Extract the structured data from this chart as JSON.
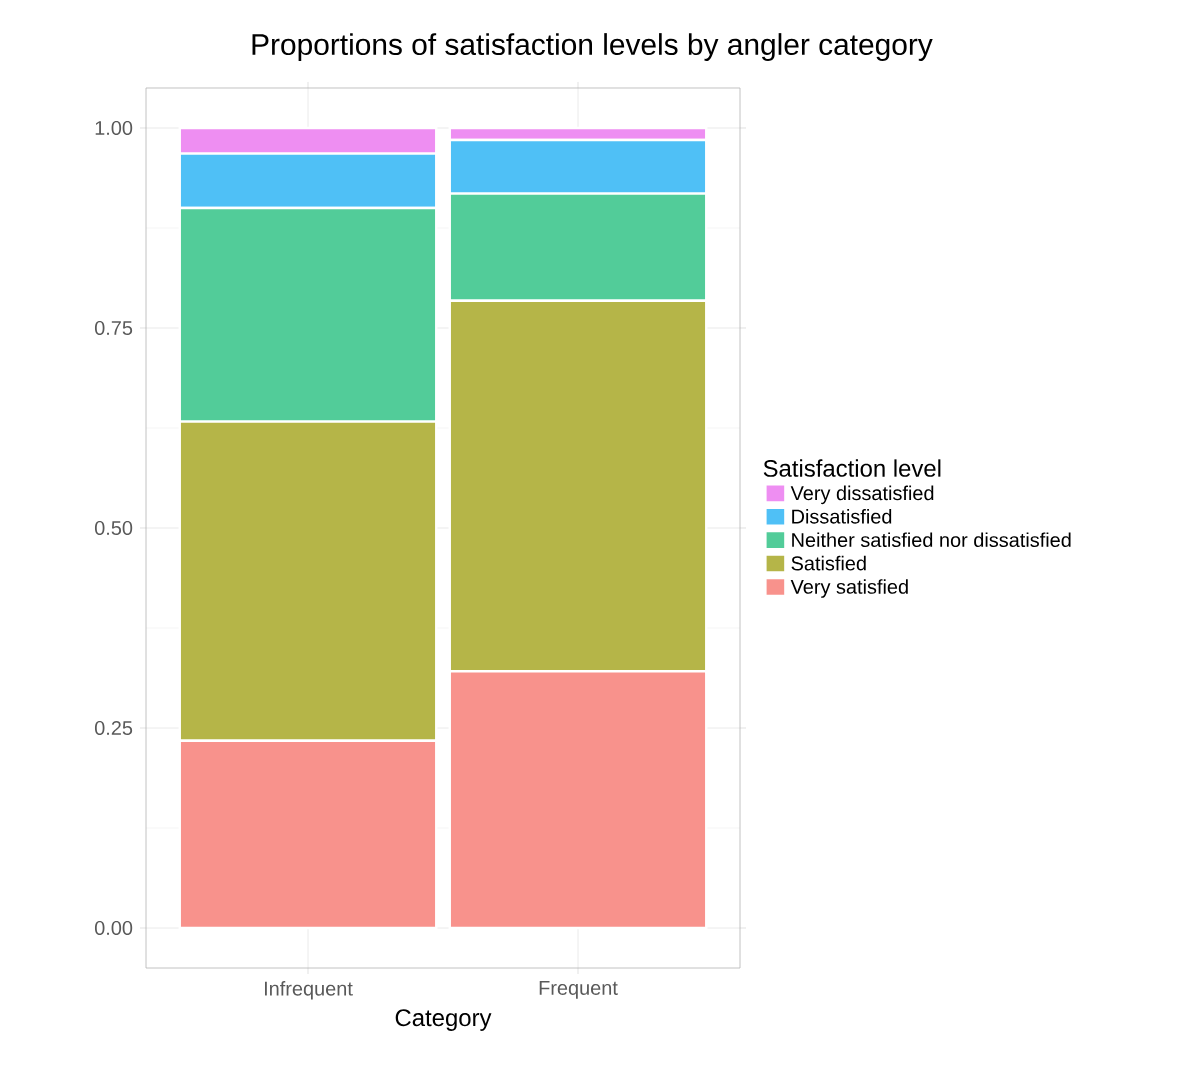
{
  "chart_data": {
    "type": "bar",
    "title": "Proportions of satisfaction levels by angler category",
    "xlabel": "Category",
    "legend_title": "Satisfaction level",
    "categories": [
      "Infrequent",
      "Frequent"
    ],
    "stacked": true,
    "ylim": [
      -0.05,
      1.05
    ],
    "yticks": [
      {
        "value": 0,
        "label": "0.00"
      },
      {
        "value": 0.25,
        "label": "0.25"
      },
      {
        "value": 0.5,
        "label": "0.50"
      },
      {
        "value": 0.75,
        "label": "0.75"
      },
      {
        "value": 1,
        "label": "1.00"
      }
    ],
    "grid": true,
    "legend": "right",
    "series": [
      {
        "name": "Very satisfied",
        "color": "#f8928c",
        "values": [
          0.234,
          0.321
        ]
      },
      {
        "name": "Satisfied",
        "color": "#b5b548",
        "values": [
          0.399,
          0.463
        ]
      },
      {
        "name": "Neither satisfied nor dissatisfied",
        "color": "#52cc99",
        "values": [
          0.267,
          0.134
        ]
      },
      {
        "name": "Dissatisfied",
        "color": "#4fc0f6",
        "values": [
          0.068,
          0.067
        ]
      },
      {
        "name": "Very dissatisfied",
        "color": "#ee8ef2",
        "values": [
          0.032,
          0.015
        ]
      }
    ]
  }
}
